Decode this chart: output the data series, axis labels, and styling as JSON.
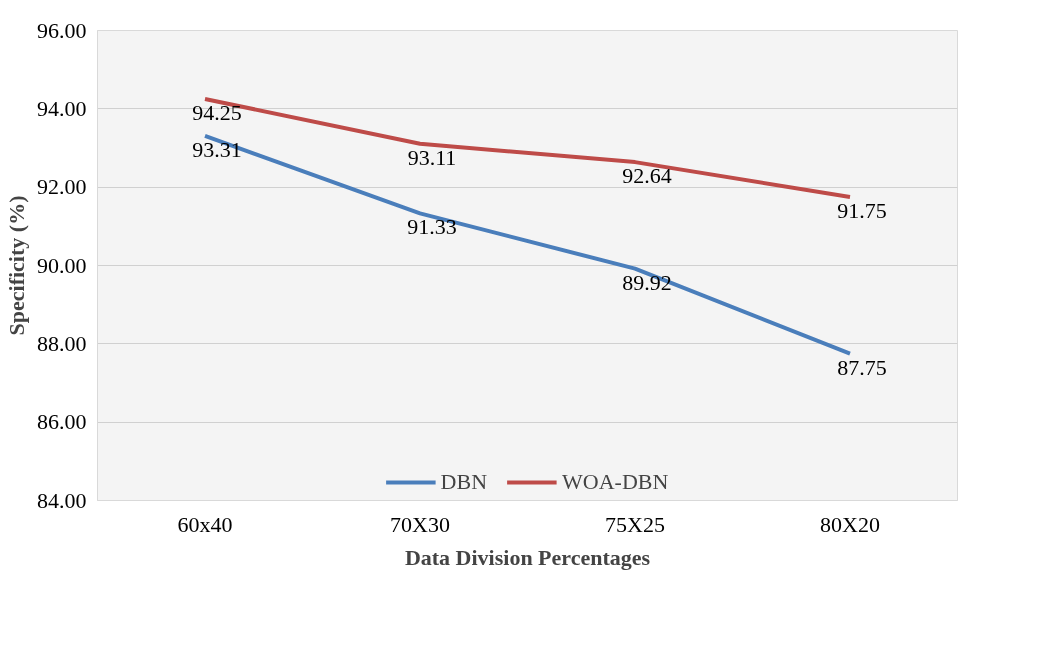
{
  "chart_data": {
    "type": "line",
    "xlabel": "Data Division Percentages",
    "ylabel": "Specificity (%)",
    "categories": [
      "60x40",
      "70X30",
      "75X25",
      "80X20"
    ],
    "series": [
      {
        "name": "DBN",
        "color": "#4a7ebb",
        "values": [
          93.31,
          91.33,
          89.92,
          87.75
        ]
      },
      {
        "name": "WOA-DBN",
        "color": "#be4b48",
        "values": [
          94.25,
          93.11,
          92.64,
          91.75
        ]
      }
    ],
    "ylim": [
      84,
      96
    ],
    "yticks": [
      {
        "value": 84,
        "label": "84.00"
      },
      {
        "value": 86,
        "label": "86.00"
      },
      {
        "value": 88,
        "label": "88.00"
      },
      {
        "value": 90,
        "label": "90.00"
      },
      {
        "value": 92,
        "label": "92.00"
      },
      {
        "value": 94,
        "label": "94.00"
      },
      {
        "value": 96,
        "label": "96.00"
      }
    ],
    "grid": "y",
    "legend": "bottom",
    "data_labels": true,
    "marker": "none",
    "line_style": "solid"
  }
}
